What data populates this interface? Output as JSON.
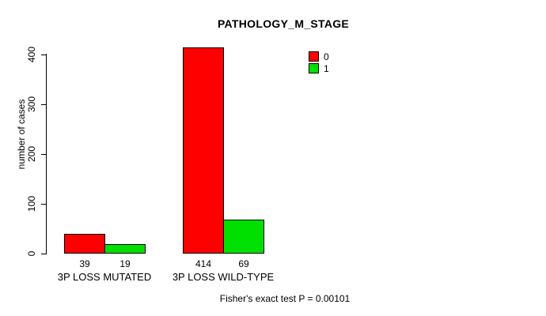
{
  "chart_data": {
    "type": "bar",
    "title": "PATHOLOGY_M_STAGE",
    "categories": [
      "3P LOSS MUTATED",
      "3P LOSS WILD-TYPE"
    ],
    "series": [
      {
        "name": "0",
        "color": "#ff0000",
        "values": [
          39,
          414
        ]
      },
      {
        "name": "1",
        "color": "#00e000",
        "values": [
          19,
          69
        ]
      }
    ],
    "value_labels": [
      [
        "39",
        "19"
      ],
      [
        "414",
        "69"
      ]
    ],
    "ylabel": "number of cases",
    "xlabel": "",
    "yticks": [
      0,
      100,
      200,
      300,
      400
    ],
    "ylim": [
      0,
      420
    ],
    "grid": false,
    "legend_position": "top-right",
    "annotation": "Fisher's exact test P = 0.00101",
    "colors": {
      "background": "#ffffff",
      "axis": "#000000",
      "bar_border": "#000000"
    }
  }
}
